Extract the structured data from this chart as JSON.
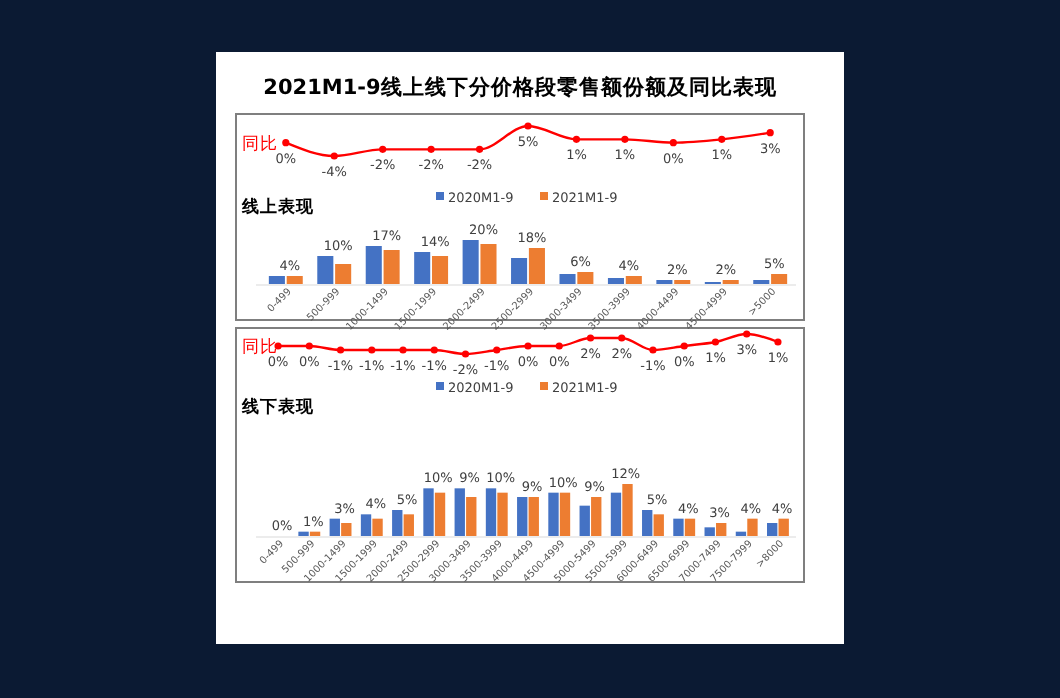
{
  "chart_data": [
    {
      "type": "line",
      "title": "2021M1-9线上线下分价格段零售额份额及同比表现",
      "ylabel": "同比",
      "marker": "circle",
      "categories": [
        null,
        null,
        null,
        null,
        null,
        null,
        null,
        null,
        null,
        null,
        null
      ],
      "series": [
        {
          "color": "#ff0000",
          "values": [
            0,
            -4,
            -2,
            -2,
            -2,
            5,
            1,
            1,
            0,
            1,
            3
          ],
          "value_labels": [
            "0%",
            "-4%",
            "-2%",
            "-2%",
            "-2%",
            "5%",
            "1%",
            "1%",
            "0%",
            "1%",
            "3%"
          ]
        }
      ]
    },
    {
      "type": "bar",
      "subtitle": "线上表现",
      "legend": "top",
      "categories": [
        "0-499",
        "500-999",
        "1000-1499",
        "1500-1999",
        "2000-2499",
        "2500-2999",
        "3000-3499",
        "3500-3999",
        "4000-4499",
        "4500-4999",
        ">5000"
      ],
      "series": [
        {
          "name": "2020M1-9",
          "color": "#4472c4",
          "values": [
            4,
            14,
            19,
            16,
            22,
            13,
            5,
            3,
            2,
            1,
            2
          ]
        },
        {
          "name": "2021M1-9",
          "color": "#ed7d31",
          "values": [
            4,
            10,
            17,
            14,
            20,
            18,
            6,
            4,
            2,
            2,
            5
          ],
          "value_labels": [
            "4%",
            "10%",
            "17%",
            "14%",
            "20%",
            "18%",
            "6%",
            "4%",
            "2%",
            "2%",
            "5%"
          ]
        }
      ]
    },
    {
      "type": "line",
      "ylabel": "同比",
      "marker": "circle",
      "categories": [
        null,
        null,
        null,
        null,
        null,
        null,
        null,
        null,
        null,
        null,
        null,
        null,
        null,
        null,
        null,
        null,
        null
      ],
      "series": [
        {
          "color": "#ff0000",
          "values": [
            0,
            0,
            -1,
            -1,
            -1,
            -1,
            -2,
            -1,
            0,
            0,
            2,
            2,
            -1,
            0,
            1,
            3,
            1
          ],
          "value_labels": [
            "0%",
            "0%",
            "-1%",
            "-1%",
            "-1%",
            "-1%",
            "-2%",
            "-1%",
            "0%",
            "0%",
            "2%",
            "2%",
            "-1%",
            "0%",
            "1%",
            "3%",
            "1%"
          ]
        }
      ]
    },
    {
      "type": "bar",
      "subtitle": "线下表现",
      "legend": "top",
      "categories": [
        "0-499",
        "500-999",
        "1000-1499",
        "1500-1999",
        "2000-2499",
        "2500-2999",
        "3000-3499",
        "3500-3999",
        "4000-4499",
        "4500-4999",
        "5000-5499",
        "5500-5999",
        "6000-6499",
        "6500-6999",
        "7000-7499",
        "7500-7999",
        ">8000"
      ],
      "series": [
        {
          "name": "2020M1-9",
          "color": "#4472c4",
          "values": [
            0,
            1,
            4,
            5,
            6,
            11,
            11,
            11,
            9,
            10,
            7,
            10,
            6,
            4,
            2,
            1,
            3
          ]
        },
        {
          "name": "2021M1-9",
          "color": "#ed7d31",
          "values": [
            0,
            1,
            3,
            4,
            5,
            10,
            9,
            10,
            9,
            10,
            9,
            12,
            5,
            4,
            3,
            4,
            4
          ],
          "value_labels": [
            "0%",
            "1%",
            "3%",
            "4%",
            "5%",
            "10%",
            "9%",
            "10%",
            "9%",
            "10%",
            "9%",
            "12%",
            "5%",
            "4%",
            "3%",
            "4%",
            "4%"
          ]
        }
      ]
    }
  ]
}
